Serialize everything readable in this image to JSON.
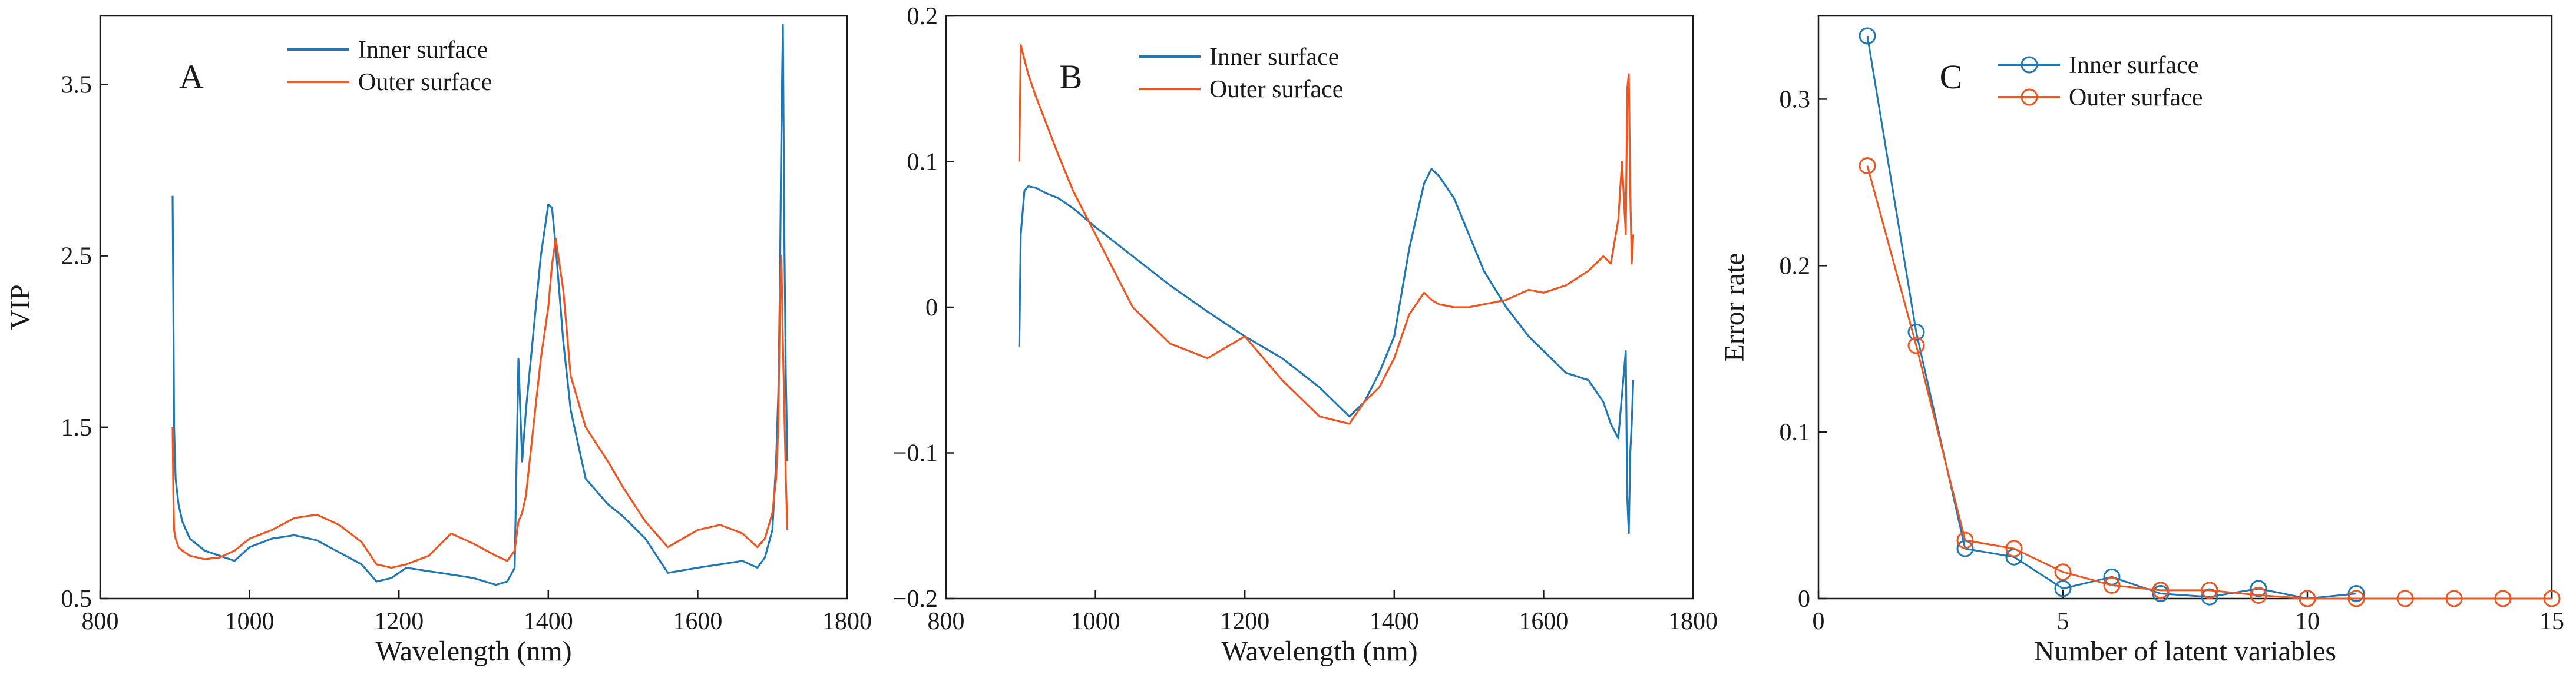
{
  "colors": {
    "inner": "#1f77b4",
    "outer": "#f0541f",
    "axis": "#1a1a1a"
  },
  "chart_data": [
    {
      "id": "A",
      "type": "line",
      "panel_label": "A",
      "xlabel": "Wavelength (nm)",
      "ylabel": "VIP",
      "xlim": [
        800,
        1800
      ],
      "ylim": [
        0.5,
        3.9
      ],
      "xticks": [
        800,
        1000,
        1200,
        1400,
        1600,
        1800
      ],
      "yticks": [
        0.5,
        1.5,
        2.5,
        3.5
      ],
      "ytick_labels": [
        "0.5",
        "1.5",
        "2.5",
        "3.5"
      ],
      "legend": [
        "Inner surface",
        "Outer surface"
      ],
      "legend_position": "top-center",
      "series": [
        {
          "name": "Inner surface",
          "x": [
            897,
            898,
            899,
            901,
            905,
            910,
            920,
            940,
            960,
            980,
            1000,
            1030,
            1060,
            1090,
            1120,
            1150,
            1170,
            1190,
            1210,
            1240,
            1270,
            1300,
            1330,
            1345,
            1355,
            1360,
            1365,
            1370,
            1380,
            1390,
            1400,
            1405,
            1410,
            1420,
            1430,
            1450,
            1480,
            1500,
            1530,
            1560,
            1600,
            1630,
            1660,
            1680,
            1690,
            1700,
            1705,
            1708,
            1710,
            1712,
            1714,
            1716,
            1718,
            1720
          ],
          "y": [
            2.85,
            2.2,
            1.5,
            1.2,
            1.05,
            0.95,
            0.85,
            0.78,
            0.75,
            0.72,
            0.8,
            0.85,
            0.87,
            0.84,
            0.77,
            0.7,
            0.6,
            0.62,
            0.68,
            0.66,
            0.64,
            0.62,
            0.58,
            0.6,
            0.68,
            1.9,
            1.3,
            1.6,
            2.05,
            2.5,
            2.8,
            2.78,
            2.55,
            2.0,
            1.6,
            1.2,
            1.05,
            0.98,
            0.85,
            0.65,
            0.68,
            0.7,
            0.72,
            0.68,
            0.74,
            0.9,
            1.3,
            1.7,
            2.3,
            3.2,
            3.85,
            2.6,
            1.8,
            1.3
          ]
        },
        {
          "name": "Outer surface",
          "x": [
            897,
            898,
            899,
            901,
            905,
            910,
            920,
            940,
            960,
            980,
            1000,
            1030,
            1060,
            1090,
            1120,
            1150,
            1170,
            1190,
            1210,
            1240,
            1270,
            1300,
            1330,
            1345,
            1355,
            1360,
            1365,
            1370,
            1380,
            1390,
            1400,
            1405,
            1410,
            1420,
            1430,
            1450,
            1480,
            1500,
            1530,
            1560,
            1600,
            1630,
            1660,
            1680,
            1690,
            1700,
            1705,
            1708,
            1710,
            1712,
            1714,
            1716,
            1718,
            1720
          ],
          "y": [
            1.5,
            1.1,
            0.9,
            0.85,
            0.8,
            0.78,
            0.75,
            0.73,
            0.74,
            0.78,
            0.85,
            0.9,
            0.97,
            0.99,
            0.93,
            0.83,
            0.7,
            0.68,
            0.7,
            0.75,
            0.88,
            0.82,
            0.75,
            0.72,
            0.78,
            0.95,
            1.0,
            1.1,
            1.5,
            1.9,
            2.2,
            2.45,
            2.6,
            2.3,
            1.8,
            1.5,
            1.3,
            1.15,
            0.95,
            0.8,
            0.9,
            0.93,
            0.88,
            0.8,
            0.85,
            1.0,
            1.2,
            1.5,
            2.2,
            2.5,
            2.0,
            1.6,
            1.2,
            0.9
          ]
        }
      ]
    },
    {
      "id": "B",
      "type": "line",
      "panel_label": "B",
      "xlabel": "Wavelength (nm)",
      "ylabel": "",
      "xlim": [
        800,
        1800
      ],
      "ylim": [
        -0.2,
        0.2
      ],
      "xticks": [
        800,
        1000,
        1200,
        1400,
        1600,
        1800
      ],
      "yticks": [
        -0.2,
        -0.1,
        0,
        0.1,
        0.2
      ],
      "ytick_labels": [
        "−0.2",
        "−0.1",
        "0",
        "0.1",
        "0.2"
      ],
      "legend": [
        "Inner surface",
        "Outer surface"
      ],
      "legend_position": "top-center",
      "series": [
        {
          "name": "Inner surface",
          "x": [
            898,
            900,
            905,
            910,
            920,
            935,
            950,
            970,
            1000,
            1050,
            1100,
            1150,
            1200,
            1250,
            1300,
            1340,
            1360,
            1380,
            1400,
            1420,
            1440,
            1450,
            1460,
            1480,
            1500,
            1520,
            1550,
            1580,
            1600,
            1630,
            1660,
            1680,
            1690,
            1700,
            1705,
            1710,
            1712,
            1714,
            1716,
            1718,
            1720
          ],
          "y": [
            -0.027,
            0.05,
            0.08,
            0.083,
            0.082,
            0.078,
            0.075,
            0.068,
            0.055,
            0.035,
            0.015,
            -0.003,
            -0.02,
            -0.035,
            -0.055,
            -0.075,
            -0.065,
            -0.045,
            -0.02,
            0.04,
            0.085,
            0.095,
            0.09,
            0.075,
            0.05,
            0.025,
            0.0,
            -0.02,
            -0.03,
            -0.045,
            -0.05,
            -0.065,
            -0.08,
            -0.09,
            -0.06,
            -0.03,
            -0.13,
            -0.155,
            -0.1,
            -0.08,
            -0.05
          ]
        },
        {
          "name": "Outer surface",
          "x": [
            898,
            900,
            905,
            910,
            920,
            935,
            950,
            970,
            1000,
            1050,
            1100,
            1150,
            1200,
            1250,
            1300,
            1340,
            1360,
            1380,
            1400,
            1420,
            1440,
            1450,
            1460,
            1480,
            1500,
            1520,
            1550,
            1580,
            1600,
            1630,
            1660,
            1680,
            1690,
            1700,
            1705,
            1710,
            1712,
            1714,
            1716,
            1718,
            1720
          ],
          "y": [
            0.1,
            0.18,
            0.17,
            0.16,
            0.145,
            0.125,
            0.105,
            0.08,
            0.05,
            0.0,
            -0.025,
            -0.035,
            -0.02,
            -0.05,
            -0.075,
            -0.08,
            -0.065,
            -0.055,
            -0.035,
            -0.005,
            0.01,
            0.005,
            0.002,
            0.0,
            0.0,
            0.002,
            0.005,
            0.012,
            0.01,
            0.015,
            0.025,
            0.035,
            0.03,
            0.06,
            0.1,
            0.05,
            0.15,
            0.16,
            0.08,
            0.03,
            0.05
          ]
        }
      ]
    },
    {
      "id": "C",
      "type": "line",
      "panel_label": "C",
      "xlabel": "Number of latent variables",
      "ylabel": "Error rate",
      "xlim": [
        0,
        15
      ],
      "ylim": [
        0,
        0.35
      ],
      "xticks": [
        0,
        5,
        10,
        15
      ],
      "yticks": [
        0,
        0.1,
        0.2,
        0.3
      ],
      "ytick_labels": [
        "0",
        "0.1",
        "0.2",
        "0.3"
      ],
      "legend": [
        "Inner surface",
        "Outer surface"
      ],
      "legend_position": "top-center",
      "markers": "open-circle",
      "series": [
        {
          "name": "Inner surface",
          "x": [
            1,
            2,
            3,
            4,
            5,
            6,
            7,
            8,
            9,
            10,
            11
          ],
          "y": [
            0.338,
            0.16,
            0.03,
            0.025,
            0.006,
            0.013,
            0.003,
            0.001,
            0.006,
            0.0,
            0.003
          ]
        },
        {
          "name": "Outer surface",
          "x": [
            1,
            2,
            3,
            4,
            5,
            6,
            7,
            8,
            9,
            10,
            11,
            12,
            13,
            14,
            15
          ],
          "y": [
            0.26,
            0.152,
            0.035,
            0.03,
            0.016,
            0.008,
            0.005,
            0.005,
            0.002,
            0.0,
            0.0,
            0.0,
            0.0,
            0.0,
            0.0
          ]
        }
      ]
    }
  ]
}
